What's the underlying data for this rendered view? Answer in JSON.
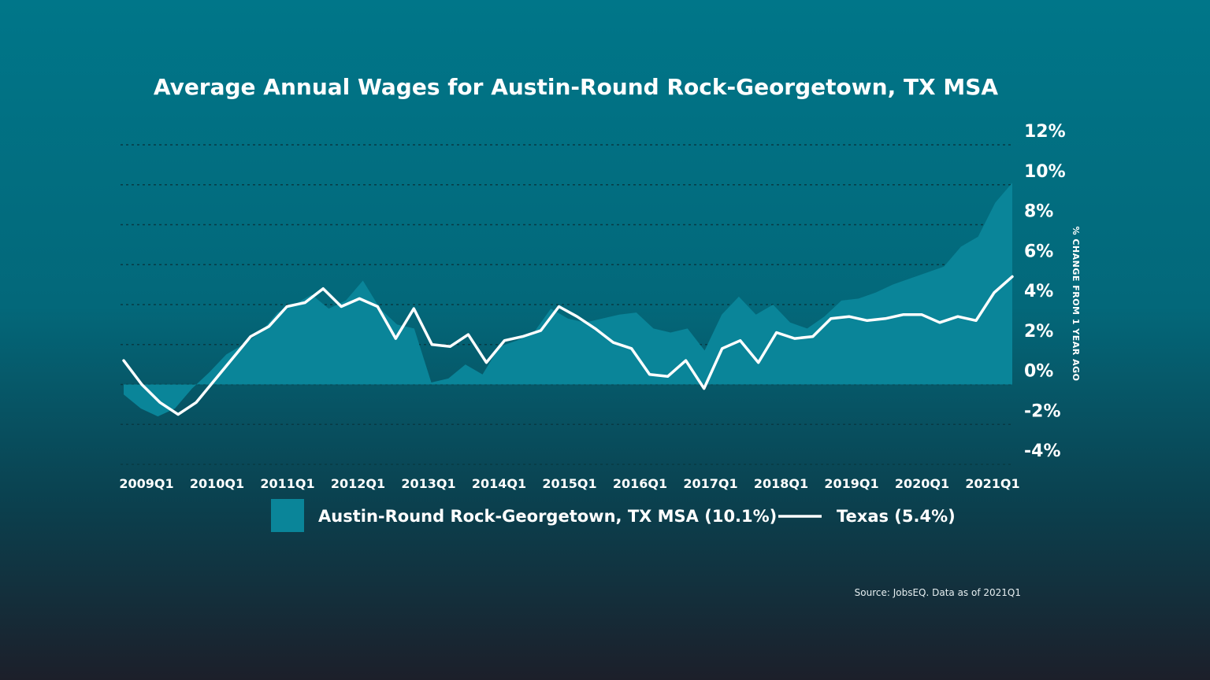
{
  "chart_data": {
    "type": "area",
    "title": "Average Annual Wages for Austin-Round Rock-Georgetown, TX MSA",
    "ylabel": "% CHANGE FROM 1 YEAR AGO",
    "ylim": [
      -4,
      12
    ],
    "yticks": [
      12,
      10,
      8,
      6,
      4,
      2,
      0,
      -2,
      -4
    ],
    "ytick_labels": [
      "12%",
      "10%",
      "8%",
      "6%",
      "4%",
      "2%",
      "0%",
      "-2%",
      "-4%"
    ],
    "xtick_labels": [
      "2009Q1",
      "2010Q1",
      "2011Q1",
      "2012Q1",
      "2013Q1",
      "2014Q1",
      "2015Q1",
      "2016Q1",
      "2017Q1",
      "2018Q1",
      "2019Q1",
      "2020Q1",
      "2021Q1"
    ],
    "grid": true,
    "series": [
      {
        "name": "Austin-Round Rock-Georgetown, TX MSA (10.1%)",
        "kind": "area",
        "values": [
          -0.5,
          -1.2,
          -1.6,
          -1.2,
          -0.2,
          0.6,
          1.5,
          2.0,
          2.6,
          3.6,
          4.0,
          4.5,
          3.8,
          4.2,
          5.2,
          3.8,
          3.0,
          2.8,
          0.1,
          0.3,
          1.0,
          0.5,
          1.9,
          2.2,
          2.6,
          3.8,
          3.3,
          3.1,
          3.3,
          3.5,
          3.6,
          2.8,
          2.6,
          2.8,
          1.7,
          3.5,
          4.4,
          3.5,
          4.0,
          3.1,
          2.8,
          3.4,
          4.2,
          4.3,
          4.6,
          5.0,
          5.3,
          5.6,
          5.9,
          6.9,
          7.4,
          9.1,
          10.1
        ]
      },
      {
        "name": "Texas (5.4%)",
        "kind": "line",
        "values": [
          1.2,
          0.0,
          -0.9,
          -1.5,
          -0.9,
          0.2,
          1.3,
          2.4,
          2.9,
          3.9,
          4.1,
          4.8,
          3.9,
          4.3,
          3.9,
          2.3,
          3.8,
          2.0,
          1.9,
          2.5,
          1.1,
          2.2,
          2.4,
          2.7,
          3.9,
          3.4,
          2.8,
          2.1,
          1.8,
          0.5,
          0.4,
          1.2,
          -0.2,
          1.8,
          2.2,
          1.1,
          2.6,
          2.3,
          2.4,
          3.3,
          3.4,
          3.2,
          3.3,
          3.5,
          3.5,
          3.1,
          3.4,
          3.2,
          4.6,
          5.4
        ]
      }
    ],
    "legend_position": "bottom",
    "source": "Source: JobsEQ. Data as of 2021Q1"
  },
  "colors": {
    "area": "#0a8599",
    "line": "#ffffff"
  }
}
